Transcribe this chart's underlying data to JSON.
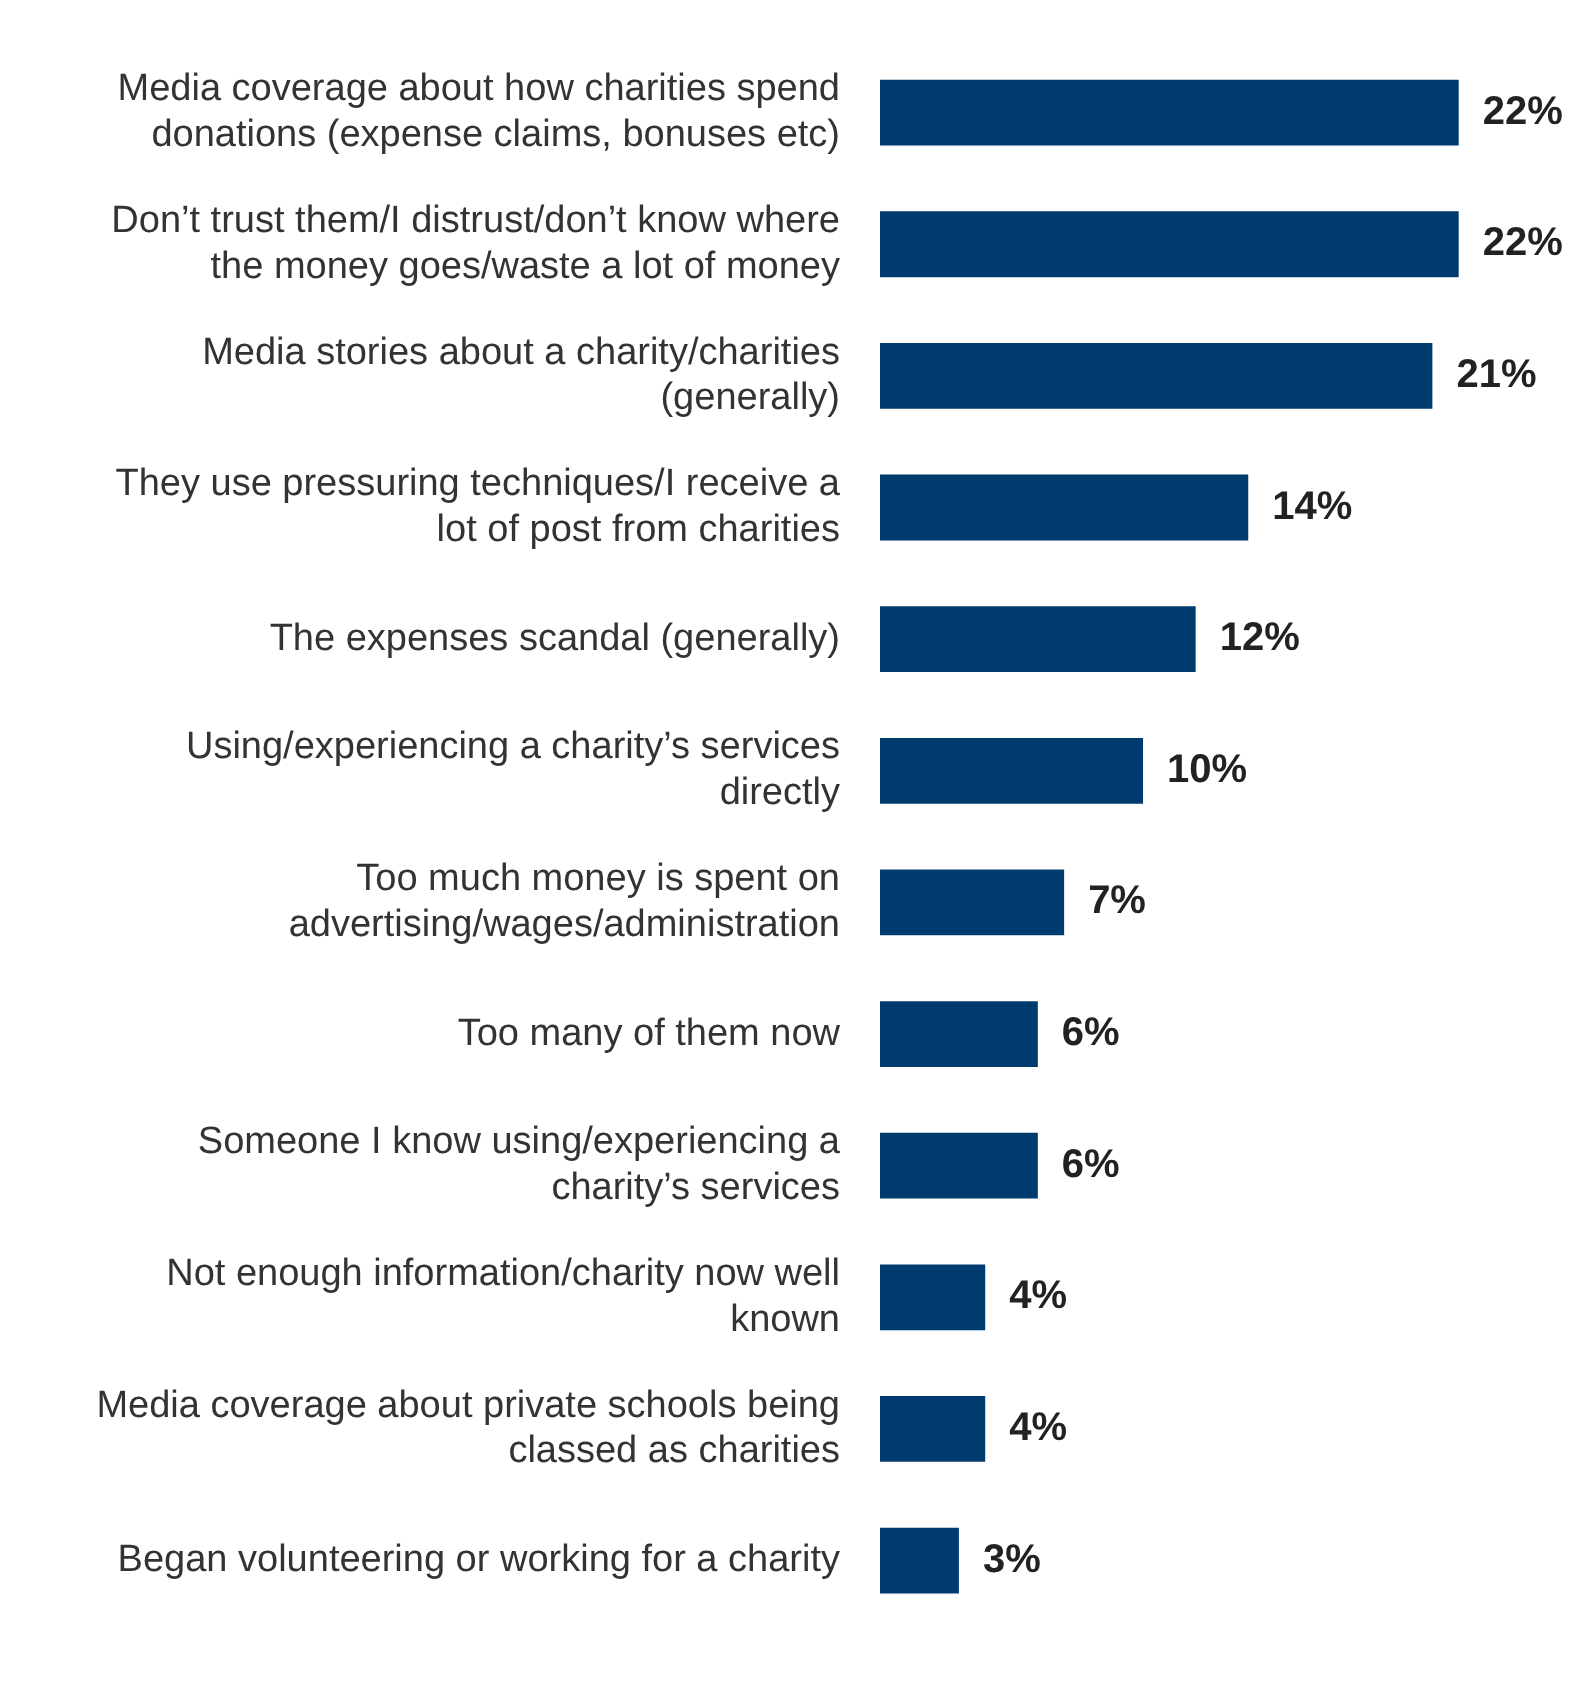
{
  "chart_data": {
    "type": "bar",
    "orientation": "horizontal",
    "categories": [
      "Media coverage about how charities spend donations (expense claims, bonuses etc)",
      "Don’t trust them/I distrust/don’t know where the money goes/waste a lot of money",
      "Media stories about a charity/charities (generally)",
      "They use pressuring techniques/I receive a lot of post from charities",
      "The expenses scandal (generally)",
      "Using/experiencing a charity’s services directly",
      "Too much money is spent on advertising/wages/administration",
      "Too many of them now",
      "Someone I know using/experiencing a charity’s services",
      "Not enough information/charity now well known",
      "Media coverage about private schools being classed as charities",
      "Began volunteering or working for a charity"
    ],
    "values": [
      22,
      22,
      21,
      14,
      12,
      10,
      7,
      6,
      6,
      4,
      4,
      3
    ],
    "color": "#003b6f",
    "value_labels": [
      "22%",
      "22%",
      "21%",
      "14%",
      "12%",
      "10%",
      "7%",
      "6%",
      "6%",
      "4%",
      "4%",
      "3%"
    ]
  }
}
